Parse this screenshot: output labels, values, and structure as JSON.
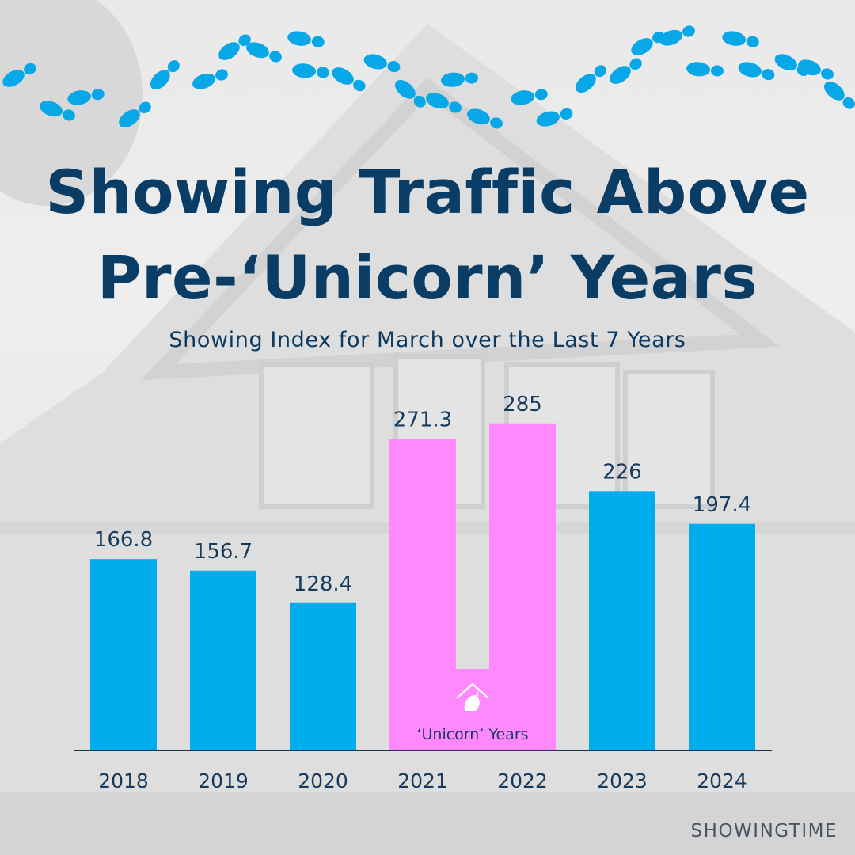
{
  "colors": {
    "title": "#0a3d66",
    "subtitle": "#0d3a60",
    "bar": "#00adec",
    "unicorn_bar": "#ff88ff",
    "label": "#163a5c",
    "axis": "#1b3550",
    "footprint": "#08a8e8",
    "brand": "#4a5563"
  },
  "title_line1": "Showing Traffic Above",
  "title_line2": "Pre-‘Unicorn’ Years",
  "subtitle": "Showing Index for March over the Last 7 Years",
  "brand": "SHOWINGTIME",
  "icons": {
    "footprints": "footprints-icon",
    "unicorn": "unicorn-house-icon"
  },
  "chart_data": {
    "type": "bar",
    "title": "Showing Index for March over the Last 7 Years",
    "categories": [
      "2018",
      "2019",
      "2020",
      "2021",
      "2022",
      "2023",
      "2024"
    ],
    "values": [
      166.8,
      156.7,
      128.4,
      271.3,
      285,
      226,
      197.4
    ],
    "value_labels": [
      "166.8",
      "156.7",
      "128.4",
      "271.3",
      "285",
      "226",
      "197.4"
    ],
    "highlight": [
      "2021",
      "2022"
    ],
    "highlight_label": "‘Unicorn’ Years",
    "xlabel": "",
    "ylabel": "",
    "ylim": [
      0,
      300
    ],
    "grid": false
  }
}
